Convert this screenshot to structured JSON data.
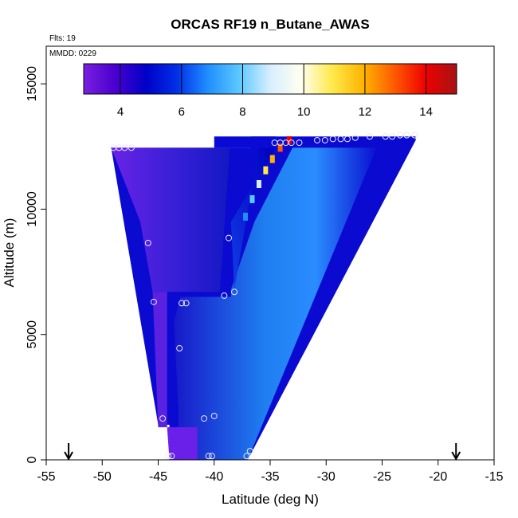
{
  "chart_data": {
    "type": "heatmap",
    "title": "ORCAS RF19 n_Butane_AWAS",
    "subtitle_flights": "Flts: 19",
    "subtitle_date": "MMDD: 0229",
    "xlabel": "Latitude (deg N)",
    "ylabel": "Altitude (m)",
    "xlim": [
      -55,
      -15
    ],
    "ylim": [
      0,
      16500
    ],
    "x_ticks": [
      "-55",
      "-50",
      "-45",
      "-40",
      "-35",
      "-30",
      "-25",
      "-20",
      "-15"
    ],
    "y_ticks": [
      "0",
      "5000",
      "10000",
      "15000"
    ],
    "colorbar": {
      "range": [
        2.8,
        15
      ],
      "ticks": [
        "4",
        "6",
        "8",
        "10",
        "12",
        "14"
      ],
      "colors": [
        "#7a1fe0",
        "#4a00d0",
        "#0000c8",
        "#0030e8",
        "#1f8fff",
        "#5cc8ff",
        "#d8eeff",
        "#fffff0",
        "#ffe94a",
        "#ffb400",
        "#ff5a00",
        "#ee0000",
        "#a51414"
      ]
    },
    "sample_points": [
      {
        "lat": -49,
        "alt": 12450
      },
      {
        "lat": -48.5,
        "alt": 12450
      },
      {
        "lat": -48,
        "alt": 12450
      },
      {
        "lat": -47.4,
        "alt": 12450
      },
      {
        "lat": -45.9,
        "alt": 8650
      },
      {
        "lat": -45.4,
        "alt": 6300
      },
      {
        "lat": -42.9,
        "alt": 6250
      },
      {
        "lat": -42.5,
        "alt": 6250
      },
      {
        "lat": -43.1,
        "alt": 4450
      },
      {
        "lat": -44.6,
        "alt": 1650
      },
      {
        "lat": -40.9,
        "alt": 1650
      },
      {
        "lat": -40,
        "alt": 1750
      },
      {
        "lat": -44.1,
        "alt": 150
      },
      {
        "lat": -43.8,
        "alt": 150
      },
      {
        "lat": -40.5,
        "alt": 150
      },
      {
        "lat": -40.2,
        "alt": 150
      },
      {
        "lat": -37.1,
        "alt": 150
      },
      {
        "lat": -36.8,
        "alt": 350
      },
      {
        "lat": -39.1,
        "alt": 6550
      },
      {
        "lat": -38.2,
        "alt": 6700
      },
      {
        "lat": -38.7,
        "alt": 8850
      },
      {
        "lat": -34.6,
        "alt": 12650
      },
      {
        "lat": -34.1,
        "alt": 12650
      },
      {
        "lat": -33.6,
        "alt": 12650
      },
      {
        "lat": -33.1,
        "alt": 12650
      },
      {
        "lat": -32.4,
        "alt": 12650
      },
      {
        "lat": -30.8,
        "alt": 12750
      },
      {
        "lat": -30.1,
        "alt": 12750
      },
      {
        "lat": -29.4,
        "alt": 12800
      },
      {
        "lat": -28.7,
        "alt": 12800
      },
      {
        "lat": -28.1,
        "alt": 12800
      },
      {
        "lat": -27.4,
        "alt": 12850
      },
      {
        "lat": -26.1,
        "alt": 12900
      },
      {
        "lat": -24.7,
        "alt": 12900
      },
      {
        "lat": -24.1,
        "alt": 12900
      },
      {
        "lat": -23.4,
        "alt": 12950
      },
      {
        "lat": -22.8,
        "alt": 12950
      },
      {
        "lat": -22.1,
        "alt": 12950
      }
    ],
    "arrows_lat": [
      -53,
      -18.4
    ]
  }
}
